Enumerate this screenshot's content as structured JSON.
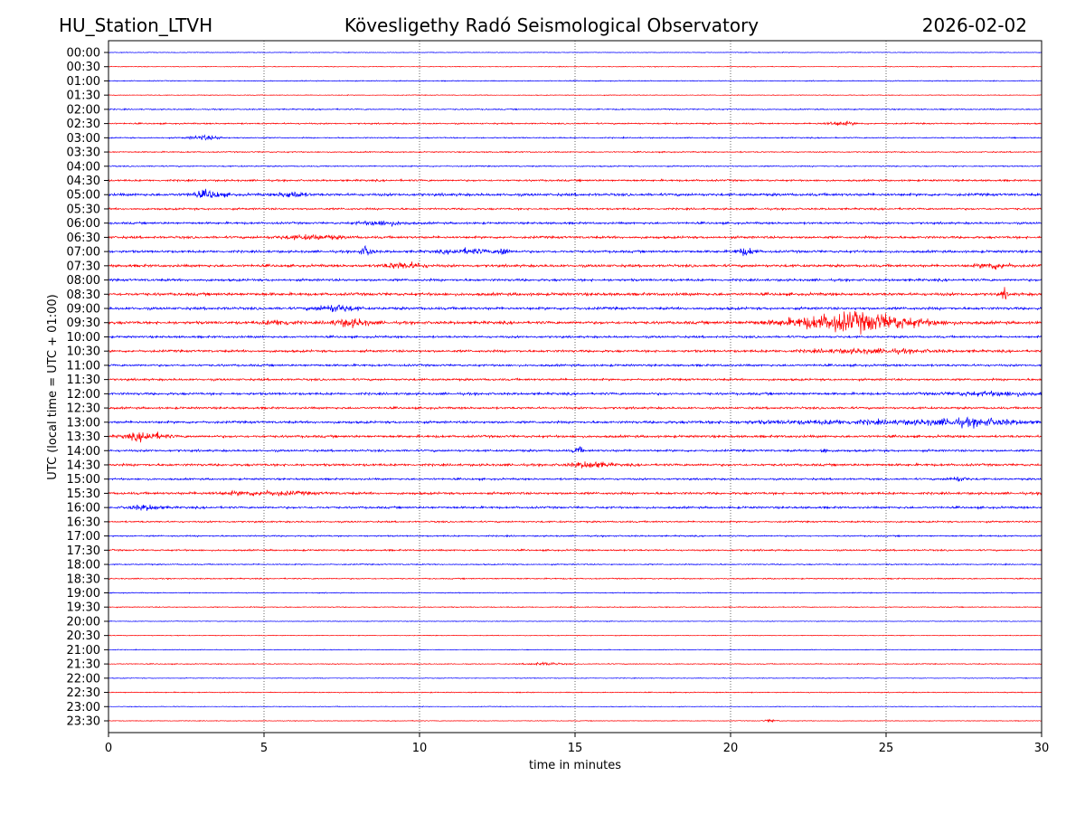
{
  "chart_data": {
    "type": "line",
    "title_left": "HU_Station_LTVH",
    "title": "Kövesligethy Radó Seismological Observatory",
    "title_right": "2026-02-02",
    "xlabel": "time in minutes",
    "ylabel": "UTC (local time = UTC + 01:00)",
    "xlim": [
      0,
      30
    ],
    "xticks": [
      "0",
      "5",
      "10",
      "15",
      "20",
      "25",
      "30"
    ],
    "grid": "vertical dotted at x ticks",
    "row_labels": [
      "00:00",
      "00:30",
      "01:00",
      "01:30",
      "02:00",
      "02:30",
      "03:00",
      "03:30",
      "04:00",
      "04:30",
      "05:00",
      "05:30",
      "06:00",
      "06:30",
      "07:00",
      "07:30",
      "08:00",
      "08:30",
      "09:00",
      "09:30",
      "10:00",
      "10:30",
      "11:00",
      "11:30",
      "12:00",
      "12:30",
      "13:00",
      "13:30",
      "14:00",
      "14:30",
      "15:00",
      "15:30",
      "16:00",
      "16:30",
      "17:00",
      "17:30",
      "18:00",
      "18:30",
      "19:00",
      "19:30",
      "20:00",
      "20:30",
      "21:00",
      "21:30",
      "22:00",
      "22:30",
      "23:00",
      "23:30"
    ],
    "series_colors": [
      "#0000ff",
      "#ff0000"
    ],
    "noise_level": [
      0.3,
      0.3,
      0.4,
      0.3,
      0.5,
      0.6,
      0.5,
      0.5,
      0.5,
      0.8,
      1.1,
      0.8,
      0.9,
      1.0,
      1.0,
      1.1,
      1.0,
      1.2,
      1.1,
      1.2,
      0.9,
      1.0,
      0.9,
      0.9,
      1.0,
      0.9,
      1.0,
      1.0,
      0.9,
      1.0,
      0.8,
      1.0,
      0.9,
      0.7,
      0.6,
      0.7,
      0.5,
      0.5,
      0.4,
      0.4,
      0.3,
      0.3,
      0.3,
      0.4,
      0.3,
      0.4,
      0.3,
      0.3
    ],
    "events": [
      {
        "row": 19,
        "minute": 24.0,
        "duration": 4.0,
        "amplitude": 8
      },
      {
        "row": 19,
        "minute": 7.8,
        "duration": 1.2,
        "amplitude": 3
      },
      {
        "row": 19,
        "minute": 5.5,
        "duration": 1.0,
        "amplitude": 2
      },
      {
        "row": 18,
        "minute": 7.3,
        "duration": 1.2,
        "amplitude": 3
      },
      {
        "row": 14,
        "minute": 8.3,
        "duration": 0.4,
        "amplitude": 4
      },
      {
        "row": 14,
        "minute": 12.7,
        "duration": 0.3,
        "amplitude": 4
      },
      {
        "row": 14,
        "minute": 11.5,
        "duration": 1.5,
        "amplitude": 2
      },
      {
        "row": 14,
        "minute": 20.5,
        "duration": 0.6,
        "amplitude": 3
      },
      {
        "row": 10,
        "minute": 3.2,
        "duration": 1.0,
        "amplitude": 3
      },
      {
        "row": 10,
        "minute": 5.9,
        "duration": 0.8,
        "amplitude": 2.5
      },
      {
        "row": 17,
        "minute": 28.8,
        "duration": 0.2,
        "amplitude": 4
      },
      {
        "row": 27,
        "minute": 1.2,
        "duration": 1.2,
        "amplitude": 3.5
      },
      {
        "row": 26,
        "minute": 27.8,
        "duration": 3.0,
        "amplitude": 2.5
      },
      {
        "row": 26,
        "minute": 24.0,
        "duration": 8.0,
        "amplitude": 1.3
      },
      {
        "row": 28,
        "minute": 15.1,
        "duration": 0.3,
        "amplitude": 3
      },
      {
        "row": 28,
        "minute": 23.0,
        "duration": 0.2,
        "amplitude": 2.5
      },
      {
        "row": 29,
        "minute": 15.5,
        "duration": 1.2,
        "amplitude": 2.5
      },
      {
        "row": 15,
        "minute": 9.5,
        "duration": 1.2,
        "amplitude": 2.5
      },
      {
        "row": 15,
        "minute": 28.5,
        "duration": 1.0,
        "amplitude": 2.5
      },
      {
        "row": 21,
        "minute": 24.5,
        "duration": 4.0,
        "amplitude": 1.5
      },
      {
        "row": 24,
        "minute": 28.5,
        "duration": 3.0,
        "amplitude": 1.5
      },
      {
        "row": 6,
        "minute": 3.1,
        "duration": 1.0,
        "amplitude": 1.8
      },
      {
        "row": 5,
        "minute": 23.5,
        "duration": 1.0,
        "amplitude": 1.5
      },
      {
        "row": 30,
        "minute": 27.3,
        "duration": 0.6,
        "amplitude": 2
      },
      {
        "row": 31,
        "minute": 5.0,
        "duration": 3.0,
        "amplitude": 1.5
      },
      {
        "row": 32,
        "minute": 1.2,
        "duration": 1.0,
        "amplitude": 2
      },
      {
        "row": 12,
        "minute": 8.8,
        "duration": 1.5,
        "amplitude": 1.8
      },
      {
        "row": 13,
        "minute": 6.5,
        "duration": 2.0,
        "amplitude": 1.6
      },
      {
        "row": 43,
        "minute": 14.0,
        "duration": 1.0,
        "amplitude": 1.2
      },
      {
        "row": 47,
        "minute": 21.3,
        "duration": 0.4,
        "amplitude": 1.2
      }
    ]
  }
}
